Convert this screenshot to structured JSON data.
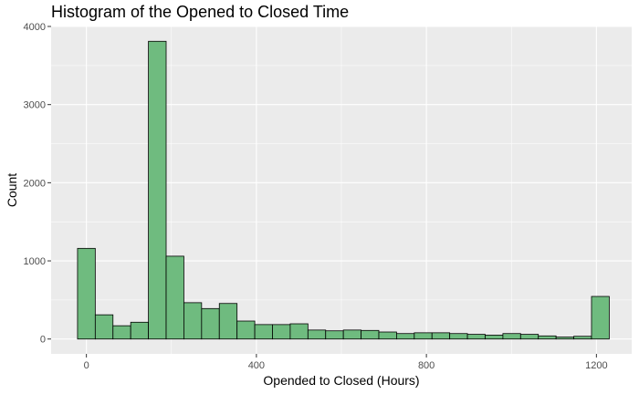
{
  "chart_data": {
    "type": "bar",
    "title": "Histogram of the Opened to Closed Time",
    "xlabel": "Opended to Closed (Hours)",
    "ylabel": "Count",
    "x_ticks": [
      0,
      400,
      800,
      1200
    ],
    "y_ticks": [
      0,
      1000,
      2000,
      3000,
      4000
    ],
    "xlim": [
      -83,
      1283
    ],
    "ylim": [
      -190,
      4000
    ],
    "bin_width": 41.7,
    "bins": [
      {
        "center": 0,
        "count": 1160
      },
      {
        "center": 41.7,
        "count": 310
      },
      {
        "center": 83.4,
        "count": 170
      },
      {
        "center": 125.1,
        "count": 215
      },
      {
        "center": 166.8,
        "count": 3810
      },
      {
        "center": 208.5,
        "count": 1060
      },
      {
        "center": 250.2,
        "count": 465
      },
      {
        "center": 291.9,
        "count": 390
      },
      {
        "center": 333.6,
        "count": 455
      },
      {
        "center": 375.3,
        "count": 230
      },
      {
        "center": 417,
        "count": 185
      },
      {
        "center": 458.7,
        "count": 185
      },
      {
        "center": 500.4,
        "count": 195
      },
      {
        "center": 542.1,
        "count": 115
      },
      {
        "center": 583.8,
        "count": 105
      },
      {
        "center": 625.5,
        "count": 115
      },
      {
        "center": 667.2,
        "count": 110
      },
      {
        "center": 708.9,
        "count": 90
      },
      {
        "center": 750.6,
        "count": 70
      },
      {
        "center": 792.3,
        "count": 80
      },
      {
        "center": 834,
        "count": 80
      },
      {
        "center": 875.7,
        "count": 70
      },
      {
        "center": 917.4,
        "count": 60
      },
      {
        "center": 959.1,
        "count": 50
      },
      {
        "center": 1000.8,
        "count": 70
      },
      {
        "center": 1042.5,
        "count": 60
      },
      {
        "center": 1084.2,
        "count": 40
      },
      {
        "center": 1125.9,
        "count": 25
      },
      {
        "center": 1167.6,
        "count": 35
      },
      {
        "center": 1209.3,
        "count": 545
      }
    ],
    "grid": true,
    "legend": "none",
    "colors": {
      "bar_fill": "#6fbb7f",
      "bar_stroke": "#000000",
      "panel_bg": "#ebebeb",
      "grid": "#ffffff",
      "tick_text": "#4d4d4d",
      "tick_mark": "#333333"
    }
  }
}
